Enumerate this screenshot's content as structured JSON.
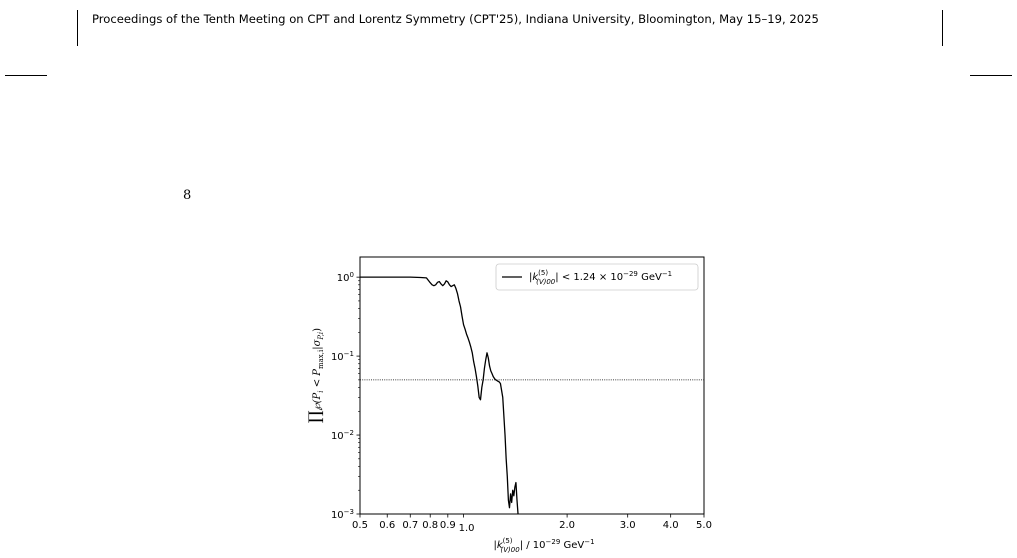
{
  "header": {
    "text": "Proceedings of the Tenth Meeting on CPT and Lorentz Symmetry (CPT'25), Indiana University, Bloomington, May 15–19, 2025"
  },
  "page_number": "8",
  "chart_data": {
    "type": "line",
    "x_scale": "log",
    "y_scale": "log",
    "xlim": [
      0.5,
      5.0
    ],
    "ylim": [
      0.001,
      1.8
    ],
    "x_ticks": [
      {
        "v": 0.5,
        "label": "0.5"
      },
      {
        "v": 0.6,
        "label": "0.6"
      },
      {
        "v": 0.7,
        "label": "0.7"
      },
      {
        "v": 0.8,
        "label": "0.8"
      },
      {
        "v": 0.9,
        "label": "0.9"
      },
      {
        "v": 1.0,
        "label": "1.0"
      },
      {
        "v": 2.0,
        "label": "2.0"
      },
      {
        "v": 3.0,
        "label": "3.0"
      },
      {
        "v": 4.0,
        "label": "4.0"
      },
      {
        "v": 5.0,
        "label": "5.0"
      }
    ],
    "y_ticks": [
      {
        "v": 1,
        "mant": "10",
        "exp": "0"
      },
      {
        "v": 0.1,
        "mant": "10",
        "exp": "−1"
      },
      {
        "v": 0.01,
        "mant": "10",
        "exp": "−2"
      },
      {
        "v": 0.001,
        "mant": "10",
        "exp": "−3"
      }
    ],
    "xlabel_parts": {
      "k": "k",
      "sup": "(5)",
      "sub": "(V)00",
      "rest": " / 10",
      "exp": "−29",
      "unit": " GeV",
      "unit_exp": "−1"
    },
    "ylabel_parts": {
      "prod": "∏",
      "body": "℘(P",
      "sub1": "i",
      "mid": " < P",
      "sub2": "max,i",
      "bar": "|σ",
      "sub3": "P,i",
      "end": ")"
    },
    "legend_parts": {
      "k": "k",
      "sup": "(5)",
      "sub": "(V)00",
      "rest": " < 1.24 × 10",
      "exp": "−29",
      "unit": " GeV",
      "unit_exp": "−1"
    },
    "legend_loc": "upper right",
    "series": [
      {
        "color": "#000000",
        "x": [
          0.5,
          0.6,
          0.7,
          0.75,
          0.78,
          0.8,
          0.81,
          0.82,
          0.83,
          0.84,
          0.85,
          0.86,
          0.87,
          0.88,
          0.89,
          0.9,
          0.91,
          0.92,
          0.93,
          0.94,
          0.95,
          0.96,
          0.97,
          0.98,
          0.99,
          1.0,
          1.01,
          1.02,
          1.03,
          1.04,
          1.05,
          1.06,
          1.07,
          1.08,
          1.09,
          1.1,
          1.11,
          1.12,
          1.13,
          1.14,
          1.15,
          1.16,
          1.17,
          1.18,
          1.19,
          1.2,
          1.21,
          1.22,
          1.23,
          1.24,
          1.25,
          1.26,
          1.27,
          1.28,
          1.3,
          1.32,
          1.33,
          1.34,
          1.35,
          1.36,
          1.37,
          1.38,
          1.39,
          1.4,
          1.41,
          1.42,
          1.43,
          1.44
        ],
        "y": [
          1.0,
          1.0,
          1.0,
          0.99,
          0.98,
          0.85,
          0.8,
          0.78,
          0.8,
          0.86,
          0.88,
          0.82,
          0.78,
          0.82,
          0.9,
          0.87,
          0.8,
          0.76,
          0.78,
          0.8,
          0.72,
          0.62,
          0.5,
          0.42,
          0.32,
          0.25,
          0.22,
          0.19,
          0.17,
          0.15,
          0.13,
          0.11,
          0.085,
          0.07,
          0.055,
          0.042,
          0.03,
          0.028,
          0.04,
          0.05,
          0.07,
          0.09,
          0.11,
          0.095,
          0.075,
          0.065,
          0.06,
          0.055,
          0.052,
          0.05,
          0.049,
          0.048,
          0.047,
          0.045,
          0.03,
          0.01,
          0.005,
          0.003,
          0.0015,
          0.0012,
          0.0018,
          0.0014,
          0.002,
          0.0017,
          0.0022,
          0.0025,
          0.0015,
          0.001
        ]
      }
    ],
    "hline": 0.05
  }
}
